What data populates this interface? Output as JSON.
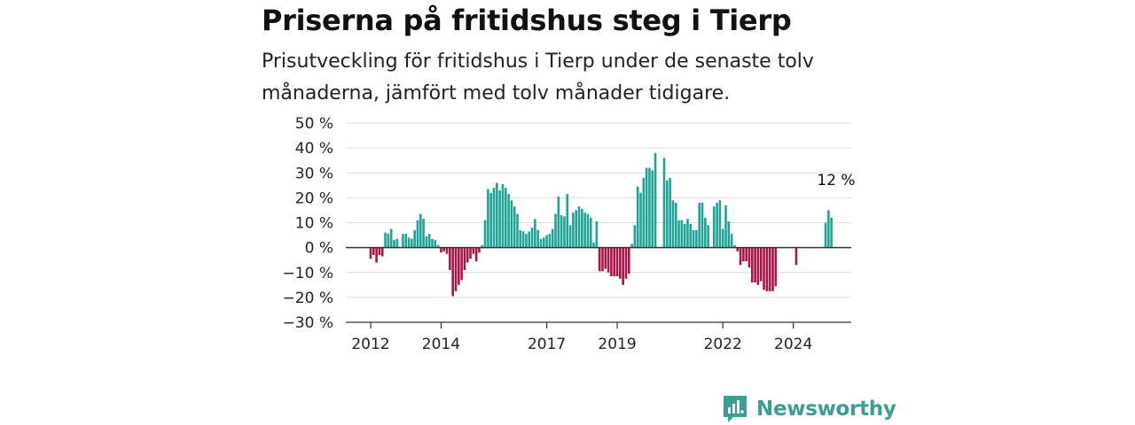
{
  "header": {
    "title": "Priserna på fritidshus steg i Tierp",
    "subtitle": "Prisutveckling för fritidshus i Tierp under de senaste tolv månaderna, jämfört med tolv månader tidigare."
  },
  "brand": {
    "name": "Newsworthy"
  },
  "colors": {
    "positive": "#1fa396",
    "negative": "#a8154a",
    "grid": "#dddddd",
    "axis": "#333333",
    "brand": "#3a9e92"
  },
  "chart_data": {
    "type": "bar",
    "ylim": [
      -30,
      50
    ],
    "ytick_values": [
      50,
      40,
      30,
      20,
      10,
      0,
      -10,
      -20,
      -30
    ],
    "ytick_labels": [
      "50 %",
      "40 %",
      "30 %",
      "20 %",
      "10 %",
      "0 %",
      "−10 %",
      "−20 %",
      "−30 %"
    ],
    "xtick_labels": [
      "2012",
      "2014",
      "2017",
      "2019",
      "2022",
      "2024"
    ],
    "xtick_dates": [
      "2012-01",
      "2014-01",
      "2017-01",
      "2019-01",
      "2022-01",
      "2024-01"
    ],
    "grid": true,
    "annotation": {
      "text": "12 %",
      "date": "2025-03",
      "value": 12
    },
    "series": [
      {
        "values": [
          [
            "2012-01",
            -4.5
          ],
          [
            "2012-02",
            -3.0
          ],
          [
            "2012-03",
            -6.0
          ],
          [
            "2012-04",
            -3.0
          ],
          [
            "2012-05",
            -3.5
          ],
          [
            "2012-06",
            6.0
          ],
          [
            "2012-07",
            5.5
          ],
          [
            "2012-08",
            7.5
          ],
          [
            "2012-09",
            3.0
          ],
          [
            "2012-10",
            3.5
          ],
          [
            "2012-11",
            0.0
          ],
          [
            "2012-12",
            5.5
          ],
          [
            "2013-01",
            5.5
          ],
          [
            "2013-02",
            4.0
          ],
          [
            "2013-03",
            3.5
          ],
          [
            "2013-04",
            7.0
          ],
          [
            "2013-05",
            11.0
          ],
          [
            "2013-06",
            13.5
          ],
          [
            "2013-07",
            11.5
          ],
          [
            "2013-08",
            4.5
          ],
          [
            "2013-09",
            5.5
          ],
          [
            "2013-10",
            3.5
          ],
          [
            "2013-11",
            3.0
          ],
          [
            "2013-12",
            1.0
          ],
          [
            "2014-01",
            -2.0
          ],
          [
            "2014-02",
            -1.5
          ],
          [
            "2014-03",
            -2.5
          ],
          [
            "2014-04",
            -9.0
          ],
          [
            "2014-05",
            -19.5
          ],
          [
            "2014-06",
            -17.5
          ],
          [
            "2014-07",
            -15.0
          ],
          [
            "2014-08",
            -13.0
          ],
          [
            "2014-09",
            -9.0
          ],
          [
            "2014-10",
            -6.0
          ],
          [
            "2014-11",
            -4.5
          ],
          [
            "2014-12",
            -2.5
          ],
          [
            "2015-01",
            -5.5
          ],
          [
            "2015-02",
            -2.0
          ],
          [
            "2015-03",
            1.0
          ],
          [
            "2015-04",
            11.0
          ],
          [
            "2015-05",
            23.5
          ],
          [
            "2015-06",
            22.0
          ],
          [
            "2015-07",
            24.0
          ],
          [
            "2015-08",
            26.0
          ],
          [
            "2015-09",
            23.0
          ],
          [
            "2015-10",
            25.5
          ],
          [
            "2015-11",
            24.0
          ],
          [
            "2015-12",
            21.5
          ],
          [
            "2016-01",
            19.0
          ],
          [
            "2016-02",
            16.5
          ],
          [
            "2016-03",
            13.5
          ],
          [
            "2016-04",
            7.0
          ],
          [
            "2016-05",
            6.5
          ],
          [
            "2016-06",
            5.5
          ],
          [
            "2016-07",
            6.5
          ],
          [
            "2016-08",
            8.0
          ],
          [
            "2016-09",
            11.5
          ],
          [
            "2016-10",
            7.0
          ],
          [
            "2016-11",
            3.5
          ],
          [
            "2016-12",
            4.0
          ],
          [
            "2017-01",
            5.0
          ],
          [
            "2017-02",
            5.5
          ],
          [
            "2017-03",
            7.5
          ],
          [
            "2017-04",
            13.5
          ],
          [
            "2017-05",
            20.5
          ],
          [
            "2017-06",
            13.0
          ],
          [
            "2017-07",
            12.5
          ],
          [
            "2017-08",
            21.5
          ],
          [
            "2017-09",
            9.0
          ],
          [
            "2017-10",
            14.0
          ],
          [
            "2017-11",
            15.0
          ],
          [
            "2017-12",
            16.5
          ],
          [
            "2018-01",
            15.5
          ],
          [
            "2018-02",
            14.0
          ],
          [
            "2018-03",
            13.5
          ],
          [
            "2018-04",
            12.0
          ],
          [
            "2018-05",
            2.0
          ],
          [
            "2018-06",
            10.5
          ],
          [
            "2018-07",
            -9.5
          ],
          [
            "2018-08",
            -9.5
          ],
          [
            "2018-09",
            -8.5
          ],
          [
            "2018-10",
            -10.0
          ],
          [
            "2018-11",
            -11.5
          ],
          [
            "2018-12",
            -11.5
          ],
          [
            "2019-01",
            -11.5
          ],
          [
            "2019-02",
            -12.5
          ],
          [
            "2019-03",
            -15.0
          ],
          [
            "2019-04",
            -12.5
          ],
          [
            "2019-05",
            -10.5
          ],
          [
            "2019-06",
            1.5
          ],
          [
            "2019-07",
            9.0
          ],
          [
            "2019-08",
            24.5
          ],
          [
            "2019-09",
            22.0
          ],
          [
            "2019-10",
            28.0
          ],
          [
            "2019-11",
            32.0
          ],
          [
            "2019-12",
            32.0
          ],
          [
            "2020-01",
            31.0
          ],
          [
            "2020-02",
            38.0
          ],
          [
            "2020-03",
            0.0
          ],
          [
            "2020-04",
            0.0
          ],
          [
            "2020-05",
            36.0
          ],
          [
            "2020-06",
            27.0
          ],
          [
            "2020-07",
            28.0
          ],
          [
            "2020-08",
            19.0
          ],
          [
            "2020-09",
            18.0
          ],
          [
            "2020-10",
            11.0
          ],
          [
            "2020-11",
            11.0
          ],
          [
            "2020-12",
            9.5
          ],
          [
            "2021-01",
            11.5
          ],
          [
            "2021-02",
            9.5
          ],
          [
            "2021-03",
            7.0
          ],
          [
            "2021-04",
            7.0
          ],
          [
            "2021-05",
            18.0
          ],
          [
            "2021-06",
            18.0
          ],
          [
            "2021-07",
            12.0
          ],
          [
            "2021-08",
            9.0
          ],
          [
            "2021-09",
            0.0
          ],
          [
            "2021-10",
            16.5
          ],
          [
            "2021-11",
            18.0
          ],
          [
            "2021-12",
            19.0
          ],
          [
            "2022-01",
            7.5
          ],
          [
            "2022-02",
            17.0
          ],
          [
            "2022-03",
            10.5
          ],
          [
            "2022-04",
            5.5
          ],
          [
            "2022-05",
            1.0
          ],
          [
            "2022-06",
            -1.5
          ],
          [
            "2022-07",
            -7.0
          ],
          [
            "2022-08",
            -5.5
          ],
          [
            "2022-09",
            -5.5
          ],
          [
            "2022-10",
            -8.0
          ],
          [
            "2022-11",
            -14.0
          ],
          [
            "2022-12",
            -14.0
          ],
          [
            "2023-01",
            -15.0
          ],
          [
            "2023-02",
            -13.5
          ],
          [
            "2023-03",
            -17.0
          ],
          [
            "2023-04",
            -17.5
          ],
          [
            "2023-05",
            -17.5
          ],
          [
            "2023-06",
            -17.5
          ],
          [
            "2023-07",
            -15.5
          ],
          [
            "2023-08",
            0.0
          ],
          [
            "2023-09",
            0.0
          ],
          [
            "2023-10",
            0.0
          ],
          [
            "2023-11",
            0.0
          ],
          [
            "2023-12",
            0.0
          ],
          [
            "2024-01",
            0.0
          ],
          [
            "2024-02",
            -7.0
          ],
          [
            "2024-03",
            0.0
          ],
          [
            "2024-04",
            0.0
          ],
          [
            "2024-05",
            0.0
          ],
          [
            "2024-06",
            0.0
          ],
          [
            "2024-07",
            0.0
          ],
          [
            "2024-08",
            0.0
          ],
          [
            "2024-09",
            0.0
          ],
          [
            "2024-10",
            0.0
          ],
          [
            "2024-11",
            0.0
          ],
          [
            "2024-12",
            10.0
          ],
          [
            "2025-01",
            15.0
          ],
          [
            "2025-02",
            12.0
          ]
        ]
      }
    ]
  }
}
